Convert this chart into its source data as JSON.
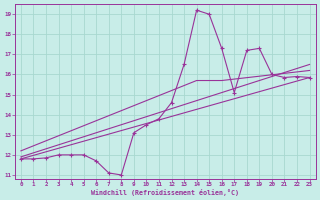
{
  "xlabel": "Windchill (Refroidissement éolien,°C)",
  "bg_color": "#c8ede8",
  "line_color": "#993399",
  "grid_color": "#a8d8d0",
  "xlim": [
    -0.5,
    23.5
  ],
  "ylim": [
    10.8,
    19.5
  ],
  "xtick_min": 0,
  "xtick_max": 23,
  "ytick_min": 11,
  "ytick_max": 19,
  "series1_x": [
    0,
    1,
    2,
    3,
    4,
    5,
    6,
    7,
    8,
    9,
    10,
    11,
    12,
    13,
    14,
    15,
    16,
    17,
    18,
    19,
    20,
    21,
    22,
    23
  ],
  "series1_y": [
    11.8,
    11.8,
    11.85,
    12.0,
    12.0,
    12.0,
    11.7,
    11.1,
    11.0,
    13.1,
    13.5,
    13.8,
    14.6,
    16.5,
    19.2,
    19.0,
    17.3,
    15.1,
    17.2,
    17.3,
    16.0,
    15.85,
    15.9,
    15.85
  ],
  "line1_x": [
    0,
    23
  ],
  "line1_y": [
    11.8,
    15.85
  ],
  "line2_x": [
    0,
    23
  ],
  "line2_y": [
    11.9,
    16.5
  ],
  "line3_x": [
    0,
    14,
    16,
    23
  ],
  "line3_y": [
    12.2,
    15.7,
    15.7,
    16.2
  ]
}
